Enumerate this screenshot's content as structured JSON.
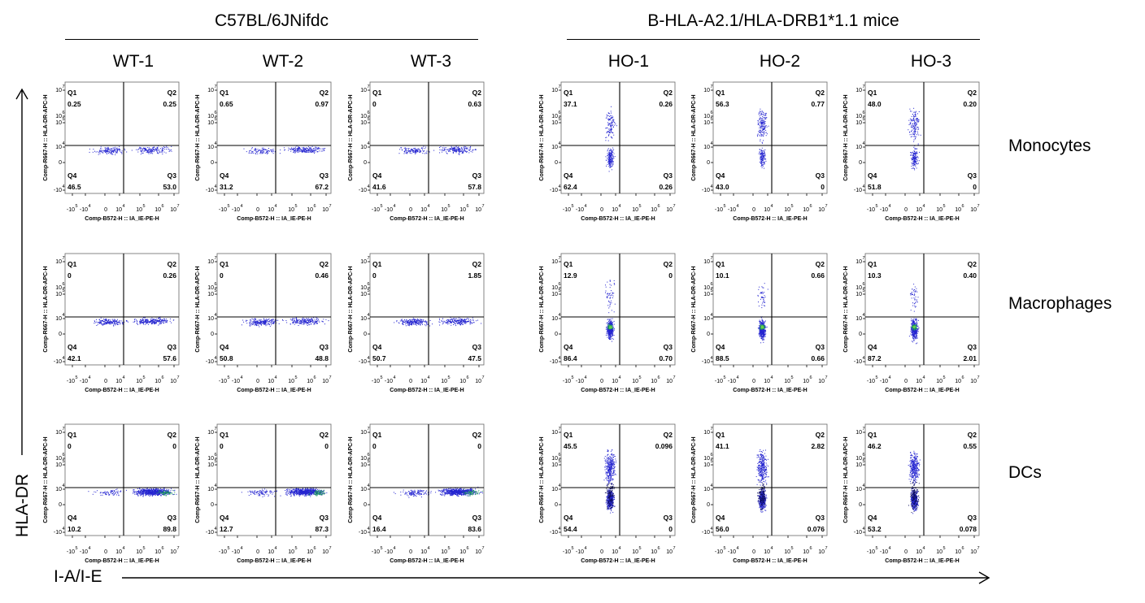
{
  "figure": {
    "groups": [
      {
        "title": "C57BL/6JNifdc",
        "samples": [
          "WT-1",
          "WT-2",
          "WT-3"
        ]
      },
      {
        "title": "B-HLA-A2.1/HLA-DRB1*1.1 mice",
        "samples": [
          "HO-1",
          "HO-2",
          "HO-3"
        ]
      }
    ],
    "rows": [
      "Monocytes",
      "Macrophages",
      "DCs"
    ],
    "y_axis_title": "HLA-DR",
    "x_axis_title": "I-A/I-E"
  },
  "chart_data": {
    "type": "scatter",
    "plot_xlabel": "Comp-B572-H :: IA_IE-PE-H",
    "plot_ylabel": "Comp-R667-H :: HLA-DR-APC-H",
    "x_ticks": [
      "-10",
      "-10",
      "0",
      "10",
      "10",
      "10",
      "10"
    ],
    "y_ticks": [
      "-10",
      "0",
      "10",
      "10",
      "10",
      "10"
    ],
    "tick_exponents_x": [
      "5",
      "4",
      "",
      "4",
      "5",
      "6",
      "7"
    ],
    "tick_exponents_y": [
      "4",
      "",
      "4",
      "5",
      "6",
      "7"
    ],
    "quadrant_names": [
      "Q1",
      "Q2",
      "Q3",
      "Q4"
    ],
    "colors": {
      "dots": "#2525d0",
      "dense": "#1a9a5a",
      "hot": "#6ad04a"
    },
    "panels": [
      [
        {
          "sample": "WT-1",
          "Q1": "0.25",
          "Q2": "0.25",
          "Q3": "53.0",
          "Q4": "46.5"
        },
        {
          "sample": "WT-2",
          "Q1": "0.65",
          "Q2": "0.97",
          "Q3": "67.2",
          "Q4": "31.2"
        },
        {
          "sample": "WT-3",
          "Q1": "0",
          "Q2": "0.63",
          "Q3": "57.8",
          "Q4": "41.6"
        },
        {
          "sample": "HO-1",
          "Q1": "37.1",
          "Q2": "0.26",
          "Q3": "0.26",
          "Q4": "62.4"
        },
        {
          "sample": "HO-2",
          "Q1": "56.3",
          "Q2": "0.77",
          "Q3": "0",
          "Q4": "43.0"
        },
        {
          "sample": "HO-3",
          "Q1": "48.0",
          "Q2": "0.20",
          "Q3": "0",
          "Q4": "51.8"
        }
      ],
      [
        {
          "sample": "WT-1",
          "Q1": "0",
          "Q2": "0.26",
          "Q3": "57.6",
          "Q4": "42.1"
        },
        {
          "sample": "WT-2",
          "Q1": "0",
          "Q2": "0.46",
          "Q3": "48.8",
          "Q4": "50.8"
        },
        {
          "sample": "WT-3",
          "Q1": "0",
          "Q2": "1.85",
          "Q3": "47.5",
          "Q4": "50.7"
        },
        {
          "sample": "HO-1",
          "Q1": "12.9",
          "Q2": "0",
          "Q3": "0.70",
          "Q4": "86.4"
        },
        {
          "sample": "HO-2",
          "Q1": "10.1",
          "Q2": "0.66",
          "Q3": "0.66",
          "Q4": "88.5"
        },
        {
          "sample": "HO-3",
          "Q1": "10.3",
          "Q2": "0.40",
          "Q3": "2.01",
          "Q4": "87.2"
        }
      ],
      [
        {
          "sample": "WT-1",
          "Q1": "0",
          "Q2": "0",
          "Q3": "89.8",
          "Q4": "10.2"
        },
        {
          "sample": "WT-2",
          "Q1": "0",
          "Q2": "0",
          "Q3": "87.3",
          "Q4": "12.7"
        },
        {
          "sample": "WT-3",
          "Q1": "0",
          "Q2": "0",
          "Q3": "83.6",
          "Q4": "16.4"
        },
        {
          "sample": "HO-1",
          "Q1": "45.5",
          "Q2": "0.096",
          "Q3": "0",
          "Q4": "54.4"
        },
        {
          "sample": "HO-2",
          "Q1": "41.1",
          "Q2": "2.82",
          "Q3": "0.076",
          "Q4": "56.0"
        },
        {
          "sample": "HO-3",
          "Q1": "46.2",
          "Q2": "0.55",
          "Q3": "0.078",
          "Q4": "53.2"
        }
      ]
    ]
  }
}
